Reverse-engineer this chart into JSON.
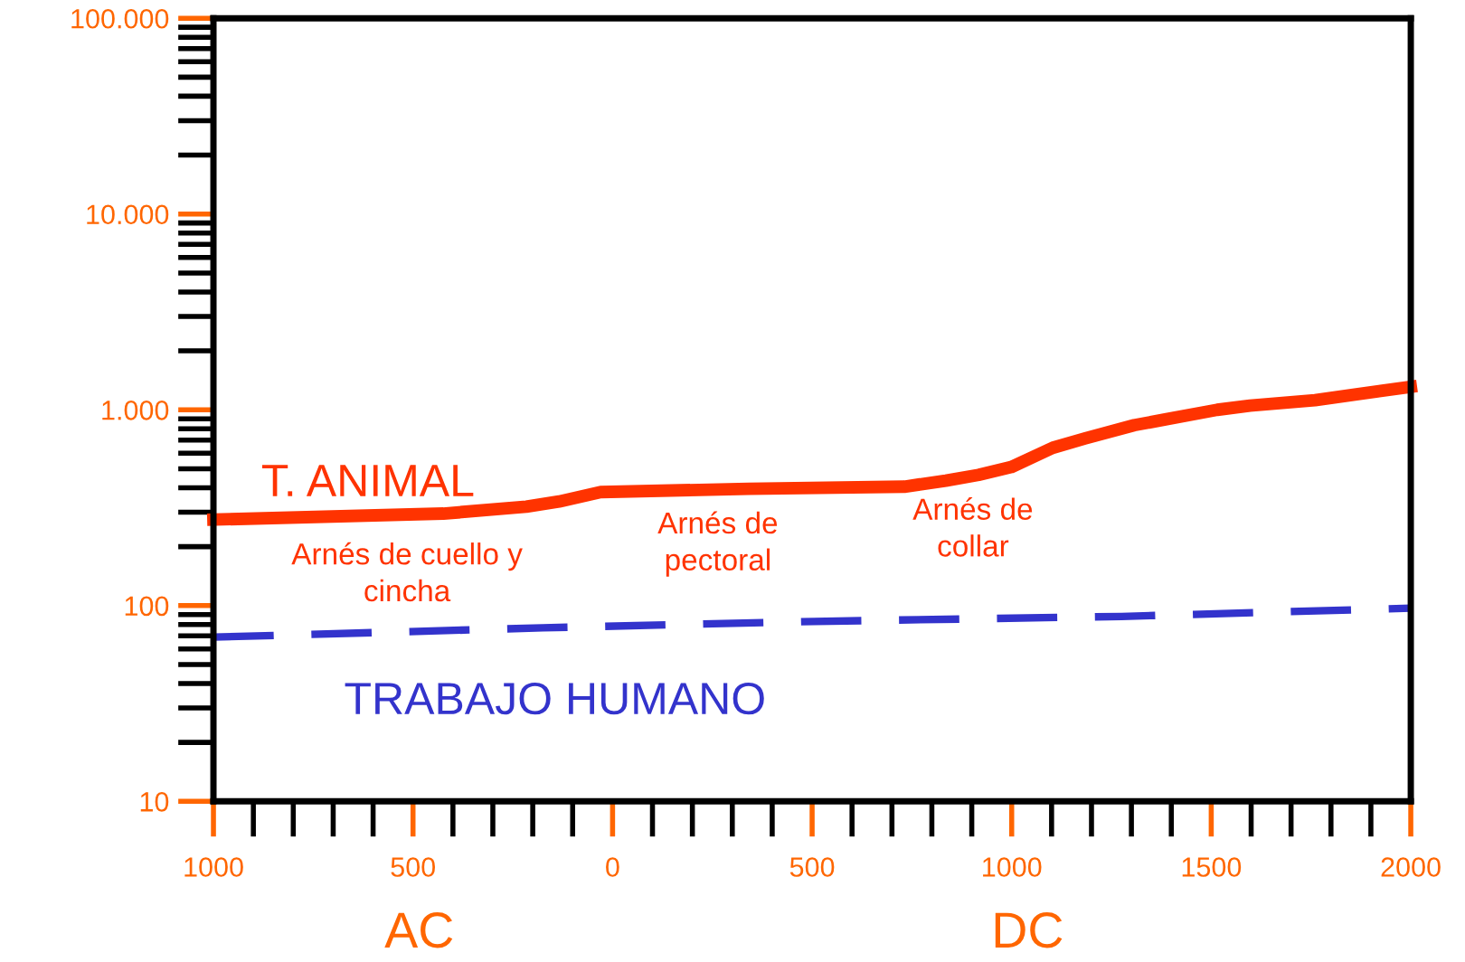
{
  "chart_data": {
    "type": "line",
    "log": "y",
    "grid": false,
    "legend": false,
    "marker": "none",
    "xlim": [
      -1000,
      2000
    ],
    "xticks": [
      {
        "value": -1000,
        "label": "1000"
      },
      {
        "value": -500,
        "label": "500"
      },
      0,
      500,
      1000,
      1500,
      2000
    ],
    "ylim": [
      10,
      100000
    ],
    "yticks": [
      10,
      100,
      {
        "value": 1000,
        "label": "1.000"
      },
      {
        "value": 10000,
        "label": "10.000"
      },
      {
        "value": 100000,
        "label": "100.000"
      }
    ],
    "series": [
      {
        "name": "T. ANIMAL",
        "color": "#ff3300",
        "line_style": "solid",
        "x": [
          -1000,
          -424,
          -216,
          -134,
          -30,
          341,
          731,
          835,
          917,
          999,
          1103,
          1184,
          1307,
          1388,
          1515,
          1597,
          1760,
          1864,
          2000
        ],
        "values": [
          275,
          295,
          320,
          340,
          380,
          395,
          405,
          435,
          465,
          510,
          640,
          715,
          835,
          895,
          1000,
          1050,
          1120,
          1200,
          1310
        ]
      },
      {
        "name": "TRABAJO HUMANO",
        "color": "#3333cc",
        "line_style": "dashed",
        "x": [
          -1000,
          -175,
          505,
          1275,
          2000
        ],
        "values": [
          69,
          77,
          83,
          88,
          97
        ]
      }
    ],
    "annotations": [
      {
        "text": "Arnés de cuello y\ncincha",
        "x": -515,
        "y": 275
      },
      {
        "text": "Arnés de\npectoral",
        "x": 264,
        "y": 395
      },
      {
        "text": "Arnés de\ncollar",
        "x": 903,
        "y": 465
      },
      "AC",
      "DC"
    ]
  }
}
